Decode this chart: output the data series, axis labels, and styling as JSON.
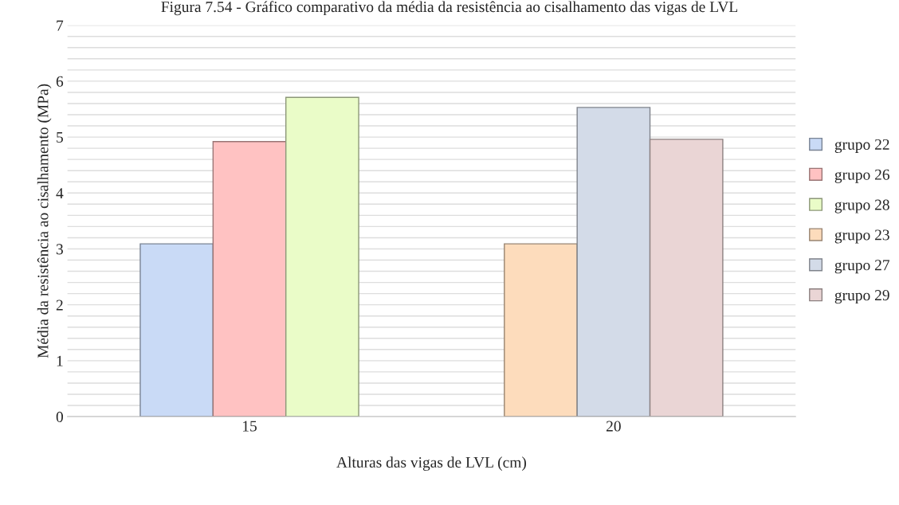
{
  "chart_data": {
    "type": "bar",
    "title": "Figura 7.54 - Gráfico comparativo da média da resistência ao cisalhamento das vigas de LVL",
    "xlabel": "Alturas das vigas de LVL (cm)",
    "ylabel": "Média da resistência ao cisalhamento (MPa)",
    "categories": [
      "15",
      "20"
    ],
    "series": [
      {
        "name": "grupo 22",
        "color": "#c9daf6",
        "values": [
          3.09,
          null
        ]
      },
      {
        "name": "grupo 26",
        "color": "#ffc2c2",
        "values": [
          4.92,
          null
        ]
      },
      {
        "name": "grupo 28",
        "color": "#eafcc8",
        "values": [
          5.71,
          null
        ]
      },
      {
        "name": "grupo 23",
        "color": "#fddcbc",
        "values": [
          null,
          3.09
        ]
      },
      {
        "name": "grupo 27",
        "color": "#d3dbe8",
        "values": [
          null,
          5.53
        ]
      },
      {
        "name": "grupo 29",
        "color": "#ead5d5",
        "values": [
          null,
          4.96
        ]
      }
    ],
    "ylim": [
      0,
      7
    ],
    "yticks": [
      0,
      {
        "value": 0.2,
        "label": null
      },
      {
        "value": 0.4,
        "label": null
      },
      {
        "value": 0.6,
        "label": null
      },
      {
        "value": 0.8,
        "label": null
      },
      1,
      {
        "value": 1.2,
        "label": null
      },
      {
        "value": 1.4,
        "label": null
      },
      {
        "value": 1.6,
        "label": null
      },
      {
        "value": 1.8,
        "label": null
      },
      2,
      {
        "value": 2.2,
        "label": null
      },
      {
        "value": 2.4,
        "label": null
      },
      {
        "value": 2.6,
        "label": null
      },
      {
        "value": 2.8,
        "label": null
      },
      3,
      {
        "value": 3.2,
        "label": null
      },
      {
        "value": 3.4,
        "label": null
      },
      {
        "value": 3.6,
        "label": null
      },
      {
        "value": 3.8,
        "label": null
      },
      4,
      {
        "value": 4.2,
        "label": null
      },
      {
        "value": 4.4,
        "label": null
      },
      {
        "value": 4.6,
        "label": null
      },
      {
        "value": 4.8,
        "label": null
      },
      5,
      {
        "value": 5.2,
        "label": null
      },
      {
        "value": 5.4,
        "label": null
      },
      {
        "value": 5.6,
        "label": null
      },
      {
        "value": 5.8,
        "label": null
      },
      6,
      {
        "value": 6.2,
        "label": null
      },
      {
        "value": 6.4,
        "label": null
      },
      {
        "value": 6.6,
        "label": null
      },
      {
        "value": 6.8,
        "label": null
      },
      7
    ],
    "grid": "y",
    "legend": "right"
  }
}
